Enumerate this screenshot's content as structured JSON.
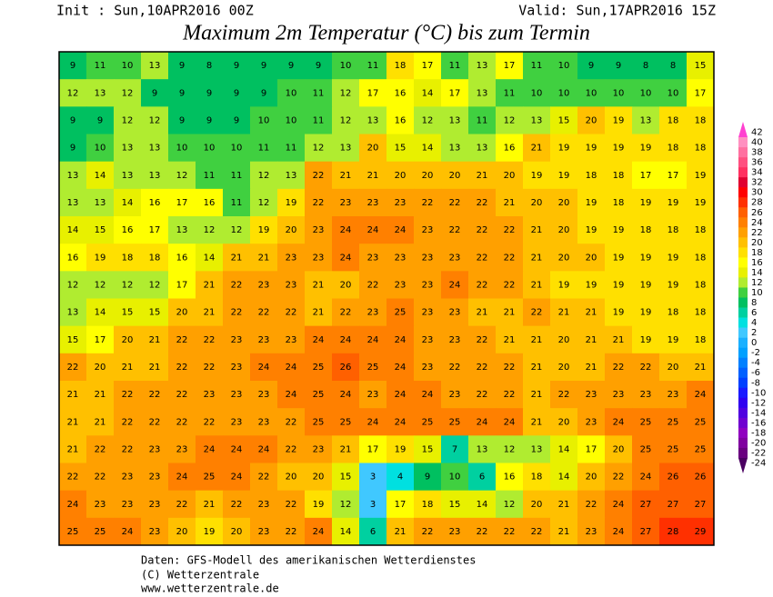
{
  "header": {
    "init": "Init : Sun,10APR2016 00Z",
    "valid": "Valid: Sun,17APR2016 15Z",
    "title": "Maximum 2m Temperatur (°C) bis zum Termin"
  },
  "map": {
    "grid": [
      [
        9,
        11,
        10,
        13,
        9,
        8,
        9,
        9,
        9,
        9,
        10,
        11,
        18,
        17,
        11,
        13,
        17,
        11,
        10,
        9,
        9,
        8,
        8,
        15
      ],
      [
        12,
        13,
        12,
        9,
        9,
        9,
        9,
        9,
        10,
        11,
        12,
        17,
        16,
        14,
        17,
        13,
        11,
        10,
        10,
        10,
        10,
        10,
        10,
        17
      ],
      [
        9,
        9,
        12,
        12,
        9,
        9,
        9,
        10,
        10,
        11,
        12,
        13,
        16,
        12,
        13,
        11,
        12,
        13,
        15,
        20,
        19,
        13,
        18,
        18
      ],
      [
        9,
        10,
        13,
        13,
        10,
        10,
        10,
        11,
        11,
        12,
        13,
        20,
        15,
        14,
        13,
        13,
        16,
        21,
        19,
        19,
        19,
        19,
        18,
        18
      ],
      [
        13,
        14,
        13,
        13,
        12,
        11,
        11,
        12,
        13,
        22,
        21,
        21,
        20,
        20,
        20,
        21,
        20,
        19,
        19,
        18,
        18,
        17,
        17,
        19
      ],
      [
        13,
        13,
        14,
        16,
        17,
        16,
        11,
        12,
        19,
        22,
        23,
        23,
        23,
        22,
        22,
        22,
        21,
        20,
        20,
        19,
        18,
        19,
        19,
        19
      ],
      [
        14,
        15,
        16,
        17,
        13,
        12,
        12,
        19,
        20,
        23,
        24,
        24,
        24,
        23,
        22,
        22,
        22,
        21,
        20,
        19,
        19,
        18,
        18,
        18
      ],
      [
        16,
        19,
        18,
        18,
        16,
        14,
        21,
        21,
        23,
        23,
        24,
        23,
        23,
        23,
        23,
        22,
        22,
        21,
        20,
        20,
        19,
        19,
        19,
        18
      ],
      [
        12,
        12,
        12,
        12,
        17,
        21,
        22,
        23,
        23,
        21,
        20,
        22,
        23,
        23,
        24,
        22,
        22,
        21,
        19,
        19,
        19,
        19,
        19,
        18
      ],
      [
        13,
        14,
        15,
        15,
        20,
        21,
        22,
        22,
        22,
        21,
        22,
        23,
        25,
        23,
        23,
        21,
        21,
        22,
        21,
        21,
        19,
        19,
        18,
        18
      ],
      [
        15,
        17,
        20,
        21,
        22,
        22,
        23,
        23,
        23,
        24,
        24,
        24,
        24,
        23,
        23,
        22,
        21,
        21,
        20,
        21,
        21,
        19,
        19,
        18
      ],
      [
        22,
        20,
        21,
        21,
        22,
        22,
        23,
        24,
        24,
        25,
        26,
        25,
        24,
        23,
        22,
        22,
        22,
        21,
        20,
        21,
        22,
        22,
        20,
        21
      ],
      [
        21,
        21,
        22,
        22,
        22,
        23,
        23,
        23,
        24,
        25,
        24,
        23,
        24,
        24,
        23,
        22,
        22,
        21,
        22,
        23,
        23,
        23,
        23,
        24
      ],
      [
        21,
        21,
        22,
        22,
        22,
        22,
        23,
        23,
        22,
        25,
        25,
        24,
        24,
        25,
        25,
        24,
        24,
        21,
        20,
        23,
        24,
        25,
        25,
        25
      ],
      [
        21,
        22,
        22,
        23,
        23,
        24,
        24,
        24,
        22,
        23,
        21,
        17,
        19,
        15,
        7,
        13,
        12,
        13,
        14,
        17,
        20,
        25,
        25,
        25
      ],
      [
        22,
        22,
        23,
        23,
        24,
        25,
        24,
        22,
        20,
        20,
        15,
        3,
        4,
        9,
        10,
        6,
        16,
        18,
        14,
        20,
        22,
        24,
        26,
        26
      ],
      [
        24,
        23,
        23,
        23,
        22,
        21,
        22,
        23,
        22,
        19,
        12,
        3,
        17,
        18,
        15,
        14,
        12,
        20,
        21,
        22,
        24,
        27,
        27,
        27
      ],
      [
        25,
        25,
        24,
        23,
        20,
        19,
        20,
        23,
        22,
        24,
        14,
        6,
        21,
        22,
        23,
        22,
        22,
        22,
        21,
        23,
        24,
        27,
        28,
        29
      ]
    ]
  },
  "legend": {
    "levels": [
      {
        "value": 42,
        "color": "#ff40d0"
      },
      {
        "value": 40,
        "color": "#ff90c0"
      },
      {
        "value": 38,
        "color": "#ff70a0"
      },
      {
        "value": 36,
        "color": "#ff5080"
      },
      {
        "value": 34,
        "color": "#ff3060"
      },
      {
        "value": 32,
        "color": "#e00030"
      },
      {
        "value": 30,
        "color": "#ff0000"
      },
      {
        "value": 28,
        "color": "#ff3000"
      },
      {
        "value": 26,
        "color": "#ff6000"
      },
      {
        "value": 24,
        "color": "#ff8000"
      },
      {
        "value": 22,
        "color": "#ffa000"
      },
      {
        "value": 20,
        "color": "#ffc000"
      },
      {
        "value": 18,
        "color": "#ffe000"
      },
      {
        "value": 16,
        "color": "#ffff00"
      },
      {
        "value": 14,
        "color": "#e8f000"
      },
      {
        "value": 12,
        "color": "#b0ec30"
      },
      {
        "value": 10,
        "color": "#40d040"
      },
      {
        "value": 8,
        "color": "#00c060"
      },
      {
        "value": 6,
        "color": "#00d0a0"
      },
      {
        "value": 4,
        "color": "#00e0e0"
      },
      {
        "value": 2,
        "color": "#40c8ff"
      },
      {
        "value": 0,
        "color": "#1ab0ff"
      },
      {
        "value": -2,
        "color": "#00a0ff"
      },
      {
        "value": -4,
        "color": "#0080ff"
      },
      {
        "value": -6,
        "color": "#0060ff"
      },
      {
        "value": -8,
        "color": "#0040ff"
      },
      {
        "value": -10,
        "color": "#1a1aff"
      },
      {
        "value": -12,
        "color": "#3000f0"
      },
      {
        "value": -14,
        "color": "#5000e0"
      },
      {
        "value": -16,
        "color": "#7000d0"
      },
      {
        "value": -18,
        "color": "#9000c0"
      },
      {
        "value": -20,
        "color": "#8000a0"
      },
      {
        "value": -22,
        "color": "#6a0080"
      },
      {
        "value": -24,
        "color": "#4b0061"
      }
    ]
  },
  "footer": {
    "lines": [
      "Daten: GFS-Modell des amerikanischen Wetterdienstes",
      "(C) Wetterzentrale",
      "www.wetterzentrale.de"
    ]
  }
}
